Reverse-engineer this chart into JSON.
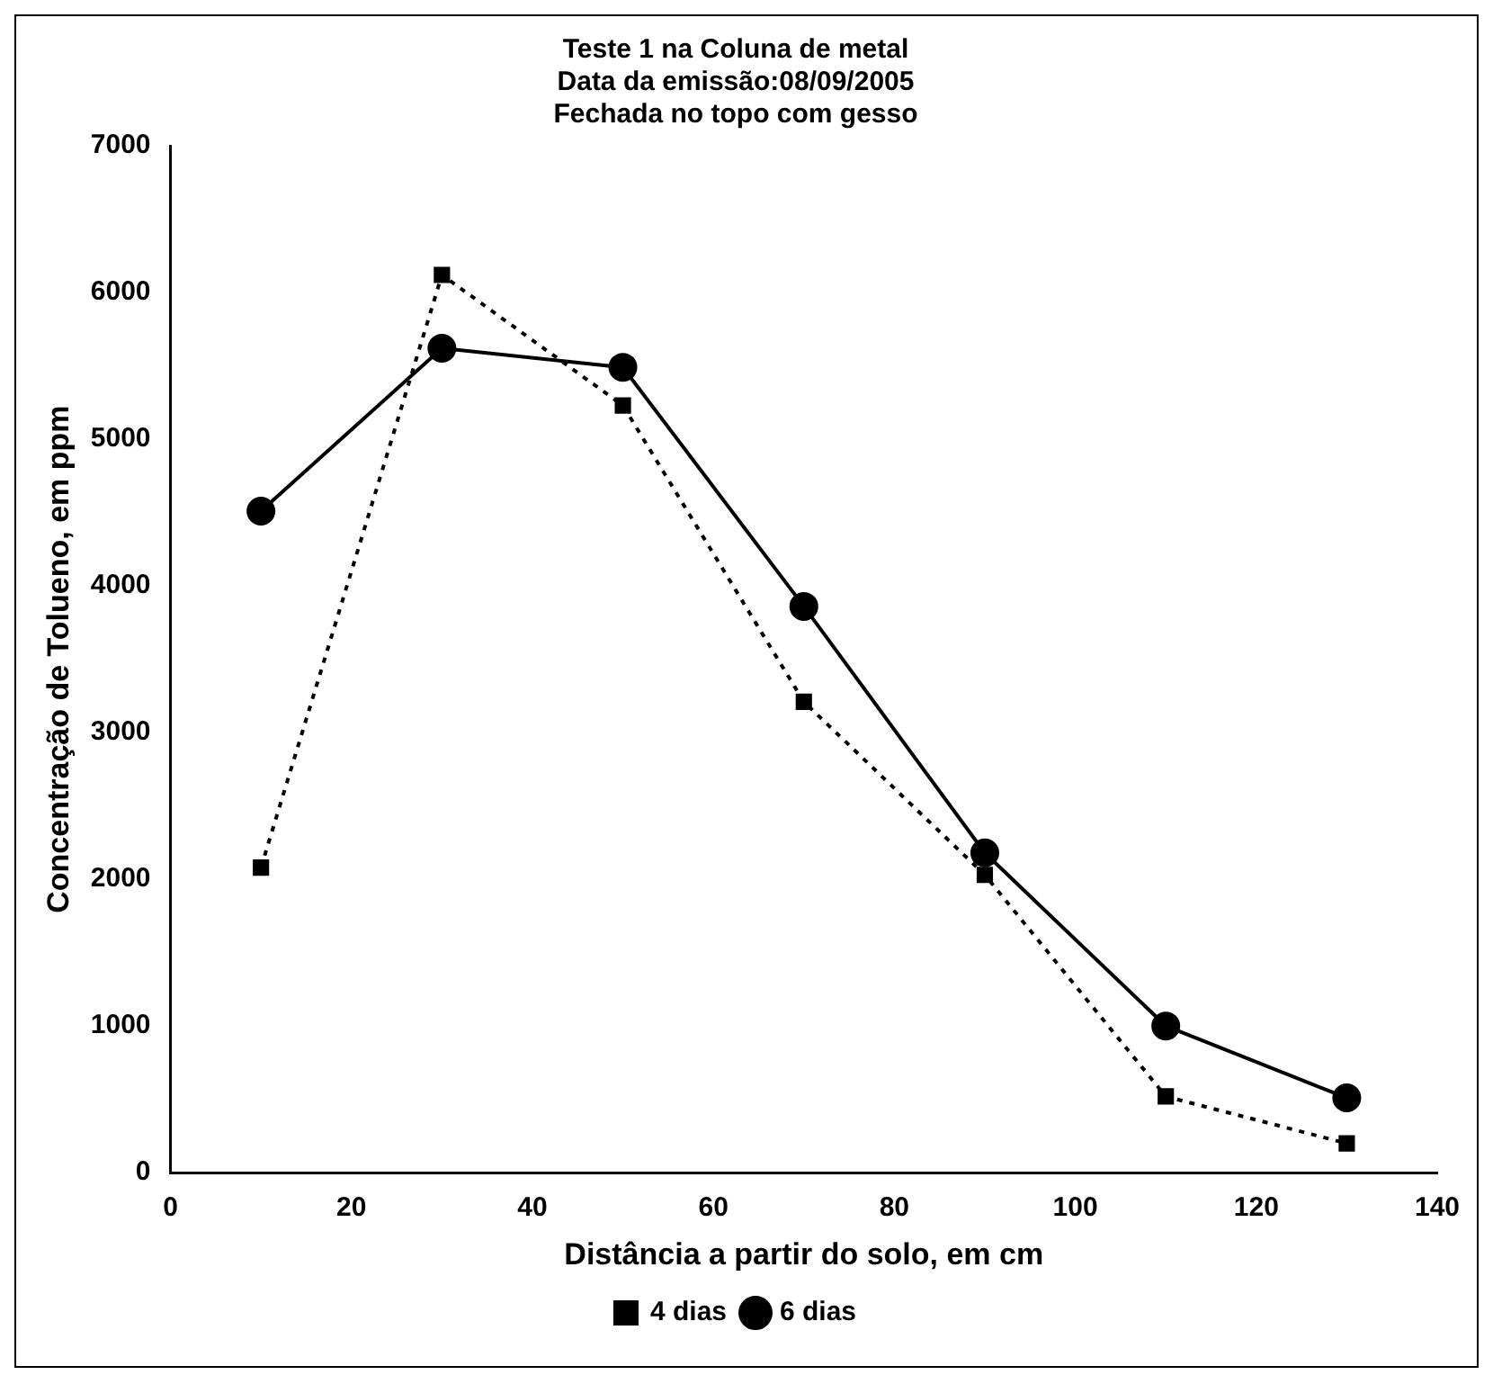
{
  "chart_data": {
    "type": "line",
    "title": [
      "Teste 1 na Coluna de metal",
      "Data da emissão:08/09/2005",
      "Fechada no topo com gesso"
    ],
    "xlabel": "Distância a partir do solo, em cm",
    "ylabel": "Concentração de Tolueno, em ppm",
    "x": [
      10,
      30,
      50,
      70,
      90,
      110,
      130
    ],
    "xlim": [
      0,
      140
    ],
    "xticks": [
      0,
      20,
      40,
      60,
      80,
      100,
      120,
      140
    ],
    "ylim": [
      0,
      7000
    ],
    "yticks": [
      0,
      1000,
      2000,
      3000,
      4000,
      5000,
      6000,
      7000
    ],
    "grid": false,
    "legend": "bottom",
    "series": [
      {
        "name": "4 dias",
        "color": "#000000",
        "marker": "square",
        "line_style": "dotted",
        "values": [
          2080,
          6120,
          5230,
          3210,
          2030,
          520,
          200
        ]
      },
      {
        "name": "6 dias",
        "color": "#000000",
        "marker": "circle",
        "line_style": "solid",
        "values": [
          4510,
          5620,
          5490,
          3860,
          2180,
          1000,
          510
        ]
      }
    ]
  }
}
